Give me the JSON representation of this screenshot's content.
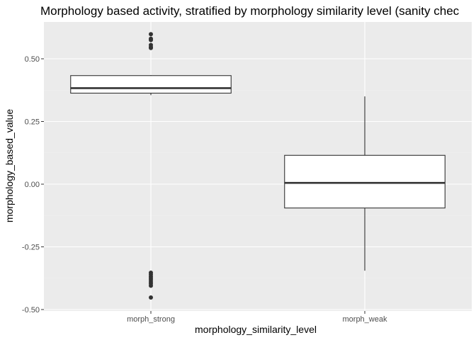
{
  "chart_data": {
    "type": "box",
    "title": "Morphology based activity, stratified by morphology similarity level (sanity chec",
    "xlabel": "morphology_similarity_level",
    "ylabel": "morphology_based_value",
    "ylim": [
      -0.5,
      0.63
    ],
    "yticks": [
      0.5,
      0.25,
      0.0,
      -0.25,
      -0.5
    ],
    "ytick_labels": [
      "0.50",
      "0.25",
      "0.00",
      "-0.25",
      "-0.50"
    ],
    "categories": [
      "morph_strong",
      "morph_weak"
    ],
    "grid": true,
    "boxes": [
      {
        "category": "morph_strong",
        "q1": 0.363,
        "median": 0.383,
        "q3": 0.433,
        "whisker_low": 0.355,
        "whisker_high": 0.435,
        "outliers": [
          0.598,
          0.58,
          0.575,
          0.555,
          0.547,
          0.543,
          -0.353,
          -0.36,
          -0.368,
          -0.375,
          -0.382,
          -0.39,
          -0.397,
          -0.405,
          -0.452
        ]
      },
      {
        "category": "morph_weak",
        "q1": -0.095,
        "median": 0.005,
        "q3": 0.115,
        "whisker_low": -0.345,
        "whisker_high": 0.35,
        "outliers": []
      }
    ],
    "colors": {
      "panel": "#ebebeb",
      "grid_major": "#ffffff",
      "box_fill": "#ffffff",
      "box_line": "#333333",
      "point": "#333333"
    }
  }
}
